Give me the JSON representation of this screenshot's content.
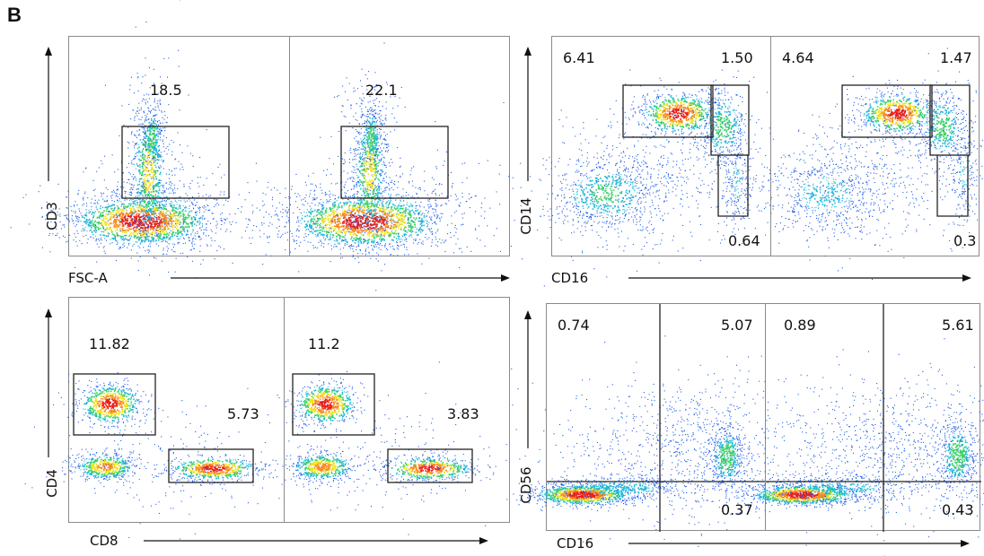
{
  "panel_label": "B",
  "figure": {
    "cd3_plot": {
      "xlabel": "FSC-A",
      "ylabel": "CD3",
      "left_value": "18.5",
      "right_value": "22.1"
    },
    "cd14_plot": {
      "xlabel": "CD16",
      "ylabel": "CD14",
      "left": {
        "upper_left": "6.41",
        "upper_right": "1.50",
        "lower_right": "0.64"
      },
      "right": {
        "upper_left": "4.64",
        "upper_right": "1.47",
        "lower_right": "0.3"
      }
    },
    "cd4_plot": {
      "xlabel": "CD8",
      "ylabel": "CD4",
      "left": {
        "cd4": "11.82",
        "cd8": "5.73"
      },
      "right": {
        "cd4": "11.2",
        "cd8": "3.83"
      }
    },
    "cd56_plot": {
      "xlabel": "CD16",
      "ylabel": "CD56",
      "left": {
        "upper_left": "0.74",
        "upper_right": "5.07",
        "lower_right": "0.37"
      },
      "right": {
        "upper_left": "0.89",
        "upper_right": "5.61",
        "lower_right": "0.43"
      }
    }
  }
}
